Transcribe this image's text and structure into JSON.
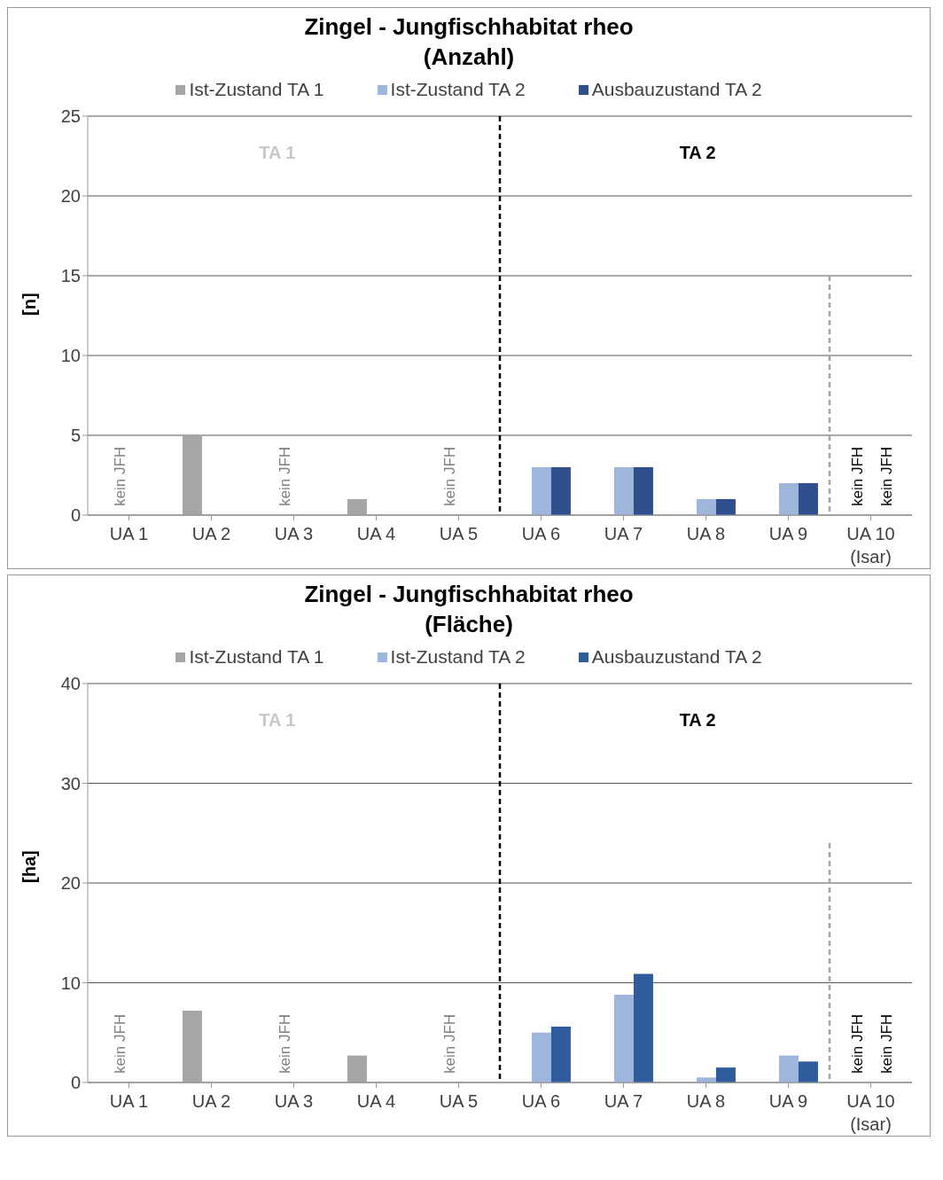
{
  "chart_data": [
    {
      "type": "bar",
      "title": "Zingel - Jungfischhabitat rheo",
      "subtitle": "(Anzahl)",
      "ylabel": "[n]",
      "categories": [
        "UA 1",
        "UA 2",
        "UA 3",
        "UA 4",
        "UA 5",
        "UA 6",
        "UA 7",
        "UA 8",
        "UA 9",
        "UA 10 (Isar)"
      ],
      "series": [
        {
          "name": "Ist-Zustand TA 1",
          "color": "#a6a6a6",
          "values": [
            null,
            5,
            null,
            1,
            null,
            null,
            null,
            null,
            null,
            null
          ]
        },
        {
          "name": "Ist-Zustand TA 2",
          "color": "#9fb6dc",
          "values": [
            null,
            null,
            null,
            null,
            null,
            3,
            3,
            1,
            2,
            null
          ]
        },
        {
          "name": "Ausbauzustand TA 2",
          "color": "#2f4f8f",
          "values": [
            null,
            null,
            null,
            null,
            null,
            3,
            3,
            1,
            2,
            null
          ]
        }
      ],
      "ylim": [
        0,
        25
      ],
      "yticks": [
        0,
        5,
        10,
        15,
        20,
        25
      ],
      "grid": "y",
      "legend": "top",
      "annotations": [
        "TA 1",
        "TA 2",
        "kein JFH",
        "kein JFH",
        "kein JFH",
        "kein JFH",
        "kein JFH"
      ]
    },
    {
      "type": "bar",
      "title": "Zingel - Jungfischhabitat rheo",
      "subtitle": "(Fläche)",
      "ylabel": "[ha]",
      "categories": [
        "UA 1",
        "UA 2",
        "UA 3",
        "UA 4",
        "UA 5",
        "UA 6",
        "UA 7",
        "UA 8",
        "UA 9",
        "UA 10 (Isar)"
      ],
      "series": [
        {
          "name": "Ist-Zustand TA 1",
          "color": "#a6a6a6",
          "values": [
            null,
            7.2,
            null,
            2.7,
            null,
            null,
            null,
            null,
            null,
            null
          ]
        },
        {
          "name": "Ist-Zustand TA 2",
          "color": "#9fb6dc",
          "values": [
            null,
            null,
            null,
            null,
            null,
            5,
            8.8,
            0.5,
            2.7,
            null
          ]
        },
        {
          "name": "Ausbauzustand TA 2",
          "color": "#2e5c9c",
          "values": [
            null,
            null,
            null,
            null,
            null,
            5.6,
            10.9,
            1.5,
            2.1,
            null
          ]
        }
      ],
      "ylim": [
        0,
        40
      ],
      "yticks": [
        0,
        10,
        20,
        30,
        40
      ],
      "grid": "y",
      "legend": "top",
      "annotations": [
        "TA 1",
        "TA 2",
        "kein JFH",
        "kein JFH",
        "kein JFH",
        "kein JFH",
        "kein JFH"
      ]
    }
  ]
}
